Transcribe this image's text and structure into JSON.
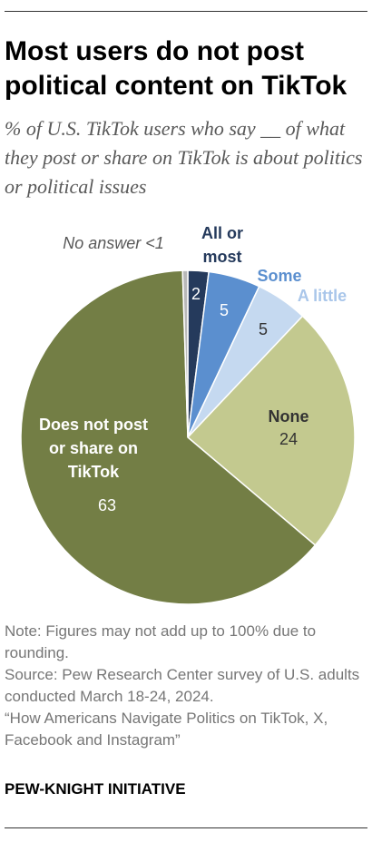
{
  "header": {
    "title": "Most users do not post political content on TikTok",
    "subtitle": "% of U.S. TikTok users who say __ of what they post or share on TikTok is about politics or political issues"
  },
  "chart_data": {
    "type": "pie",
    "start_angle_deg": 0,
    "direction": "clockwise",
    "slices": [
      {
        "key": "all",
        "label_lines": [
          "All or",
          "most"
        ],
        "value": 2,
        "value_text": "2",
        "color": "#253a5c",
        "label_color": "#253a5c",
        "value_color": "#ffffff"
      },
      {
        "key": "some",
        "label_lines": [
          "Some"
        ],
        "value": 5,
        "value_text": "5",
        "color": "#5b8fcf",
        "label_color": "#5b8fcf",
        "value_color": "#ffffff"
      },
      {
        "key": "little",
        "label_lines": [
          "A little"
        ],
        "value": 5,
        "value_text": "5",
        "color": "#c5d9f0",
        "label_color": "#a9c6ea",
        "value_color": "#333333"
      },
      {
        "key": "none",
        "label_lines": [
          "None"
        ],
        "value": 24,
        "value_text": "24",
        "color": "#c3c98f",
        "label_color": "#333333",
        "value_color": "#333333"
      },
      {
        "key": "not_post",
        "label_lines": [
          "Does not post",
          "or share on",
          "TikTok"
        ],
        "value": 63,
        "value_text": "63",
        "color": "#737e45",
        "label_color": "#ffffff",
        "value_color": "#ffffff"
      },
      {
        "key": "no_answer",
        "label_lines": [
          "No answer <1"
        ],
        "value": 0.5,
        "value_text": "",
        "color": "#b8b8b8",
        "label_color": "#595959",
        "value_color": "#595959"
      }
    ]
  },
  "notes": {
    "note": "Note: Figures may not add up to 100% due to rounding.",
    "source": "Source: Pew Research Center survey of U.S. adults conducted March 18-24, 2024.",
    "report": "“How Americans Navigate Politics on TikTok, X, Facebook and Instagram”"
  },
  "brand": "PEW-KNIGHT INITIATIVE"
}
